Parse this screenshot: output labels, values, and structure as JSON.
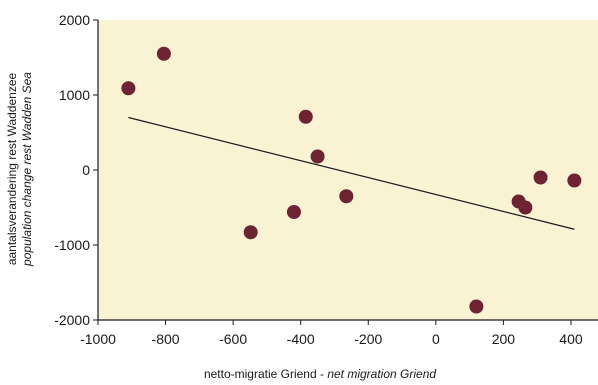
{
  "chart_data": {
    "type": "scatter",
    "title": "",
    "xlabel": "netto-migratie Griend - ",
    "xlabel_italic": "net migration Griend",
    "ylabel": "aantalsverandering rest Waddenzee",
    "ylabel_italic": "population change rest Wadden Sea",
    "xlim": [
      -1000,
      480
    ],
    "ylim": [
      -2000,
      2000
    ],
    "x_ticks": [
      "-1000",
      "-800",
      "-600",
      "-400",
      "-200",
      "0",
      "200",
      "400"
    ],
    "y_ticks": [
      "2000",
      "1000",
      "0",
      "-1000",
      "-2000"
    ],
    "grid": false,
    "colors": {
      "plot_background": "#f9f2d3",
      "point": "#6e2332",
      "trend_line": "#1a1a1a",
      "axis": "#1a1a1a"
    },
    "points": [
      {
        "x": -910,
        "y": 1090
      },
      {
        "x": -805,
        "y": 1550
      },
      {
        "x": -548,
        "y": -830
      },
      {
        "x": -420,
        "y": -560
      },
      {
        "x": -385,
        "y": 710
      },
      {
        "x": -350,
        "y": 180
      },
      {
        "x": -265,
        "y": -350
      },
      {
        "x": 120,
        "y": -1820
      },
      {
        "x": 245,
        "y": -420
      },
      {
        "x": 265,
        "y": -500
      },
      {
        "x": 310,
        "y": -100
      },
      {
        "x": 410,
        "y": -140
      }
    ],
    "trend_line": {
      "x": [
        -910,
        410
      ],
      "y": [
        700,
        -790
      ]
    }
  }
}
